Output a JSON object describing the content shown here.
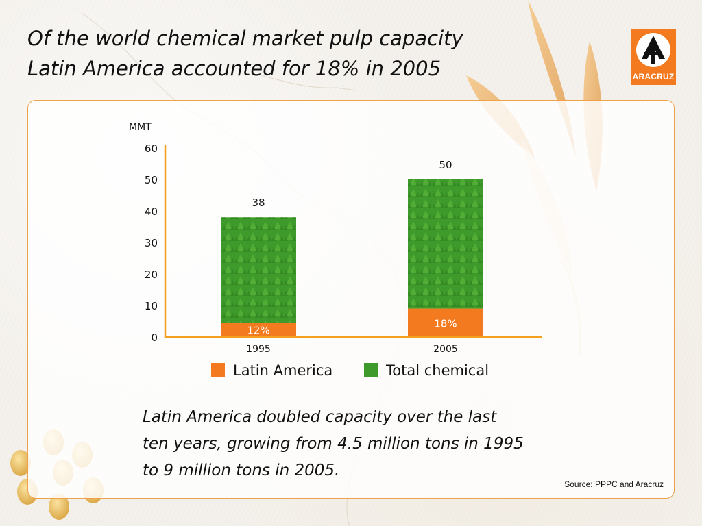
{
  "title": {
    "line1": "Of the world chemical market pulp capacity",
    "line2": "Latin America accounted for 18% in 2005"
  },
  "logo": {
    "text": "ARACRUZ",
    "color": "#f47a1f"
  },
  "chart_data": {
    "type": "bar",
    "stacked": true,
    "ylabel": "MMT",
    "ylim": [
      0,
      60
    ],
    "yticks": [
      0,
      10,
      20,
      30,
      40,
      50,
      60
    ],
    "categories": [
      "1995",
      "2005"
    ],
    "totals": [
      "38",
      "50"
    ],
    "series": [
      {
        "name": "Latin America",
        "color": "#f47a1f",
        "values": [
          4.5,
          9
        ],
        "labels": [
          "12%",
          "18%"
        ]
      },
      {
        "name": "Total chemical",
        "color": "#3e9a2a",
        "values": [
          33.5,
          41
        ]
      }
    ],
    "legend": "bottom",
    "grid": false
  },
  "caption": {
    "line1": "Latin America doubled capacity over the last",
    "line2": "ten years, growing from 4.5 million tons in 1995",
    "line3": "to 9 million tons in 2005."
  },
  "source": "Source: PPPC and Aracruz"
}
